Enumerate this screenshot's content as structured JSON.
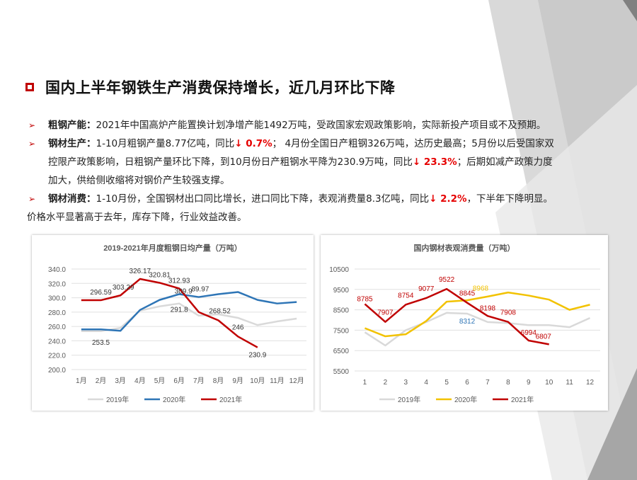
{
  "title": "国内上半年钢铁生产消费保持增长，近几月环比下降",
  "bullets": [
    {
      "label": "粗钢产能：",
      "text": "2021年中国高炉产能置换计划净增产能1492万吨，受政国家宏观政策影响，实际新投产项目或不及预期。"
    },
    {
      "label": "钢材生产：",
      "t1": "1-10月粗钢产量8.77亿吨，同比",
      "v1": "↓ 0.7%",
      "t2": "；  4月份全国日产粗钢326万吨，达历史最高；5月份以后受国家双",
      "t3": "控限产政策影响，日粗钢产量环比下降，到10月份日产粗钢水平降为230.9万吨，同比",
      "v2": "↓ 23.3%",
      "t4": "；后期如减产政策力度",
      "t5": "加大，供给侧收缩将对钢价产生较强支撑。"
    },
    {
      "label": "钢材消费：",
      "t1": "1-10月份，全国钢材出口同比增长，进口同比下降，表观消费量8.3亿吨，同比",
      "v1": "↓ 2.2%",
      "t2": "，下半年下降明显。",
      "t3": "价格水平显著高于去年，库存下降，行业效益改善。"
    }
  ],
  "chart_data": [
    {
      "type": "line",
      "title": "2019-2021年月度粗钢日均产量（万吨）",
      "categories": [
        "1月",
        "2月",
        "3月",
        "4月",
        "5月",
        "6月",
        "7月",
        "8月",
        "9月",
        "10月",
        "11月",
        "12月"
      ],
      "ylim": [
        200,
        340
      ],
      "yticks": [
        "200.0",
        "220.0",
        "240.0",
        "260.0",
        "280.0",
        "300.0",
        "320.0",
        "340.0"
      ],
      "grid": true,
      "legend_position": "bottom",
      "series": [
        {
          "name": "2019年",
          "color": "#d9d9d9",
          "values": [
            253.5,
            253.5,
            258,
            282,
            288,
            292,
            275,
            277,
            272,
            262,
            267,
            271
          ]
        },
        {
          "name": "2020年",
          "color": "#2e75b6",
          "values": [
            256,
            256,
            254,
            283,
            297,
            305,
            301,
            305,
            308,
            297,
            292,
            294
          ]
        },
        {
          "name": "2021年",
          "color": "#c00000",
          "values": [
            296.59,
            296.59,
            303.29,
            326.17,
            320.81,
            312.93,
            280,
            268.52,
            246,
            230.9,
            null,
            null
          ]
        }
      ],
      "labels": [
        "326.17",
        "320.81",
        "312.93",
        "303.29",
        "296.59",
        "309.9",
        "89.97",
        "291.8",
        "268.52",
        "253.5",
        "246",
        "230.9"
      ]
    },
    {
      "type": "line",
      "title": "国内钢材表观消费量（万吨）",
      "categories": [
        "1",
        "2",
        "3",
        "4",
        "5",
        "6",
        "7",
        "8",
        "9",
        "10",
        "11",
        "12"
      ],
      "ylim": [
        5500,
        10500
      ],
      "yticks": [
        "5500",
        "6500",
        "7500",
        "8500",
        "9500",
        "10500"
      ],
      "grid": true,
      "legend_position": "bottom",
      "series": [
        {
          "name": "2019年",
          "color": "#d9d9d9",
          "values": [
            7400,
            6750,
            7500,
            7900,
            8350,
            8312,
            7900,
            7850,
            7750,
            7750,
            7650,
            8100
          ]
        },
        {
          "name": "2020年",
          "color": "#f2c200",
          "values": [
            7600,
            7200,
            7300,
            7950,
            8900,
            8968,
            9150,
            9350,
            9200,
            9000,
            8500,
            8750
          ]
        },
        {
          "name": "2021年",
          "color": "#c00000",
          "values": [
            8785,
            7907,
            8754,
            9077,
            9522,
            8845,
            8198,
            7908,
            6994,
            6807,
            null,
            null
          ]
        }
      ],
      "labels": [
        "8785",
        "7907",
        "8754",
        "9077",
        "9522",
        "8845",
        "8968",
        "8198",
        "7908",
        "8312",
        "6994",
        "6807"
      ]
    }
  ]
}
